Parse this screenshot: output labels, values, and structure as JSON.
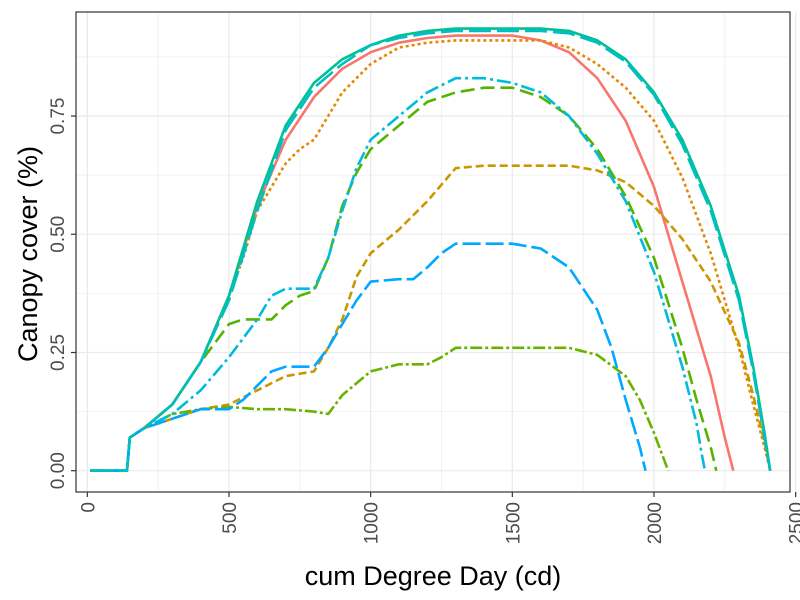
{
  "chart_data": {
    "type": "line",
    "title": "",
    "xlabel": "cum Degree Day (cd)",
    "ylabel": "Canopy cover (%)",
    "xlim": [
      -40,
      2480
    ],
    "ylim": [
      -0.045,
      0.97
    ],
    "x_ticks": [
      0,
      500,
      1000,
      1500,
      2000,
      2500
    ],
    "x_tick_labels": [
      "0",
      "500",
      "1000",
      "1500",
      "2000",
      "2500"
    ],
    "y_ticks": [
      0,
      0.25,
      0.5,
      0.75
    ],
    "y_tick_labels": [
      "0.00",
      "0.25",
      "0.50",
      "0.75"
    ],
    "grid": true,
    "legend": "none",
    "series": [
      {
        "color": "#F8766D",
        "dash": "solid",
        "x": [
          10,
          140,
          150,
          200,
          300,
          400,
          500,
          600,
          700,
          800,
          900,
          1000,
          1100,
          1200,
          1300,
          1400,
          1500,
          1600,
          1700,
          1800,
          1900,
          2000,
          2100,
          2200,
          2250,
          2280
        ],
        "y": [
          0,
          0,
          0.07,
          0.09,
          0.14,
          0.23,
          0.37,
          0.56,
          0.7,
          0.79,
          0.85,
          0.885,
          0.905,
          0.915,
          0.92,
          0.92,
          0.92,
          0.91,
          0.885,
          0.83,
          0.74,
          0.6,
          0.4,
          0.2,
          0.07,
          0
        ]
      },
      {
        "color": "#E58700",
        "dash": "3,3",
        "x": [
          10,
          140,
          150,
          200,
          300,
          400,
          500,
          550,
          600,
          700,
          750,
          800,
          900,
          1000,
          1100,
          1200,
          1300,
          1400,
          1500,
          1600,
          1700,
          1800,
          1900,
          2000,
          2100,
          2200,
          2300,
          2350,
          2390,
          2410
        ],
        "y": [
          0,
          0,
          0.07,
          0.09,
          0.14,
          0.23,
          0.37,
          0.45,
          0.55,
          0.65,
          0.68,
          0.7,
          0.8,
          0.86,
          0.895,
          0.905,
          0.91,
          0.91,
          0.91,
          0.91,
          0.895,
          0.86,
          0.81,
          0.74,
          0.62,
          0.46,
          0.26,
          0.14,
          0.05,
          0
        ]
      },
      {
        "color": "#C99800",
        "dash": "8,4",
        "x": [
          10,
          140,
          150,
          200,
          300,
          400,
          500,
          600,
          700,
          800,
          850,
          900,
          950,
          1000,
          1100,
          1200,
          1300,
          1400,
          1500,
          1600,
          1700,
          1800,
          1900,
          2000,
          2100,
          2200,
          2300,
          2350,
          2390,
          2410
        ],
        "y": [
          0,
          0,
          0.07,
          0.09,
          0.11,
          0.13,
          0.14,
          0.17,
          0.2,
          0.21,
          0.26,
          0.32,
          0.41,
          0.46,
          0.51,
          0.57,
          0.64,
          0.645,
          0.645,
          0.645,
          0.645,
          0.635,
          0.61,
          0.56,
          0.49,
          0.4,
          0.27,
          0.16,
          0.06,
          0
        ]
      },
      {
        "color": "#6BB100",
        "dash": "12,3,3,3",
        "x": [
          10,
          140,
          150,
          200,
          300,
          400,
          500,
          600,
          700,
          800,
          850,
          900,
          1000,
          1100,
          1200,
          1250,
          1300,
          1400,
          1500,
          1600,
          1700,
          1800,
          1900,
          1950,
          2000,
          2050
        ],
        "y": [
          0,
          0,
          0.07,
          0.09,
          0.12,
          0.13,
          0.135,
          0.13,
          0.13,
          0.125,
          0.12,
          0.16,
          0.21,
          0.225,
          0.225,
          0.24,
          0.26,
          0.26,
          0.26,
          0.26,
          0.26,
          0.245,
          0.2,
          0.15,
          0.08,
          0
        ]
      },
      {
        "color": "#53B400",
        "dash": "14,6",
        "x": [
          10,
          140,
          150,
          200,
          300,
          400,
          500,
          550,
          600,
          650,
          700,
          750,
          800,
          850,
          900,
          950,
          1000,
          1100,
          1200,
          1300,
          1400,
          1500,
          1600,
          1700,
          1800,
          1900,
          2000,
          2100,
          2150,
          2200,
          2220
        ],
        "y": [
          0,
          0,
          0.07,
          0.09,
          0.14,
          0.23,
          0.31,
          0.32,
          0.32,
          0.32,
          0.35,
          0.37,
          0.38,
          0.45,
          0.56,
          0.63,
          0.68,
          0.73,
          0.78,
          0.8,
          0.81,
          0.81,
          0.79,
          0.75,
          0.68,
          0.58,
          0.45,
          0.26,
          0.15,
          0.05,
          0
        ]
      },
      {
        "color": "#00C094",
        "dash": "solid",
        "x": [
          10,
          140,
          150,
          200,
          300,
          400,
          500,
          600,
          700,
          800,
          900,
          1000,
          1100,
          1200,
          1300,
          1400,
          1500,
          1600,
          1700,
          1800,
          1900,
          2000,
          2100,
          2200,
          2300,
          2350,
          2390,
          2410
        ],
        "y": [
          0,
          0,
          0.07,
          0.09,
          0.14,
          0.23,
          0.37,
          0.57,
          0.73,
          0.82,
          0.87,
          0.9,
          0.92,
          0.93,
          0.935,
          0.935,
          0.935,
          0.935,
          0.93,
          0.91,
          0.87,
          0.8,
          0.7,
          0.56,
          0.37,
          0.22,
          0.08,
          0
        ]
      },
      {
        "color": "#00BBDA",
        "dash": "14,4,3,4",
        "x": [
          10,
          140,
          150,
          200,
          300,
          400,
          500,
          600,
          650,
          700,
          750,
          800,
          850,
          900,
          950,
          1000,
          1100,
          1200,
          1300,
          1400,
          1500,
          1600,
          1700,
          1800,
          1900,
          2000,
          2100,
          2150,
          2170,
          2180
        ],
        "y": [
          0,
          0,
          0.07,
          0.09,
          0.12,
          0.17,
          0.24,
          0.32,
          0.37,
          0.385,
          0.385,
          0.385,
          0.45,
          0.55,
          0.64,
          0.7,
          0.75,
          0.8,
          0.83,
          0.83,
          0.82,
          0.8,
          0.75,
          0.67,
          0.57,
          0.42,
          0.22,
          0.1,
          0.03,
          0
        ]
      },
      {
        "color": "#00A9FF",
        "dash": "18,5",
        "x": [
          10,
          140,
          150,
          200,
          300,
          400,
          500,
          550,
          600,
          650,
          700,
          750,
          800,
          850,
          900,
          950,
          1000,
          1100,
          1150,
          1200,
          1250,
          1300,
          1400,
          1500,
          1600,
          1700,
          1800,
          1850,
          1900,
          1950,
          1970
        ],
        "y": [
          0,
          0,
          0.07,
          0.09,
          0.11,
          0.13,
          0.13,
          0.15,
          0.18,
          0.21,
          0.22,
          0.22,
          0.22,
          0.26,
          0.31,
          0.36,
          0.4,
          0.405,
          0.405,
          0.43,
          0.46,
          0.48,
          0.48,
          0.48,
          0.47,
          0.43,
          0.34,
          0.26,
          0.15,
          0.05,
          0
        ]
      },
      {
        "color": "#00BFC4",
        "dash": "22,6",
        "x": [
          10,
          140,
          150,
          200,
          300,
          400,
          500,
          600,
          700,
          800,
          900,
          1000,
          1100,
          1200,
          1300,
          1400,
          1500,
          1600,
          1700,
          1800,
          1900,
          2000,
          2100,
          2200,
          2300,
          2350,
          2390,
          2410
        ],
        "y": [
          0,
          0,
          0.07,
          0.09,
          0.14,
          0.23,
          0.36,
          0.55,
          0.72,
          0.81,
          0.86,
          0.9,
          0.915,
          0.925,
          0.93,
          0.93,
          0.93,
          0.93,
          0.925,
          0.905,
          0.865,
          0.795,
          0.69,
          0.55,
          0.36,
          0.21,
          0.07,
          0
        ]
      }
    ]
  }
}
